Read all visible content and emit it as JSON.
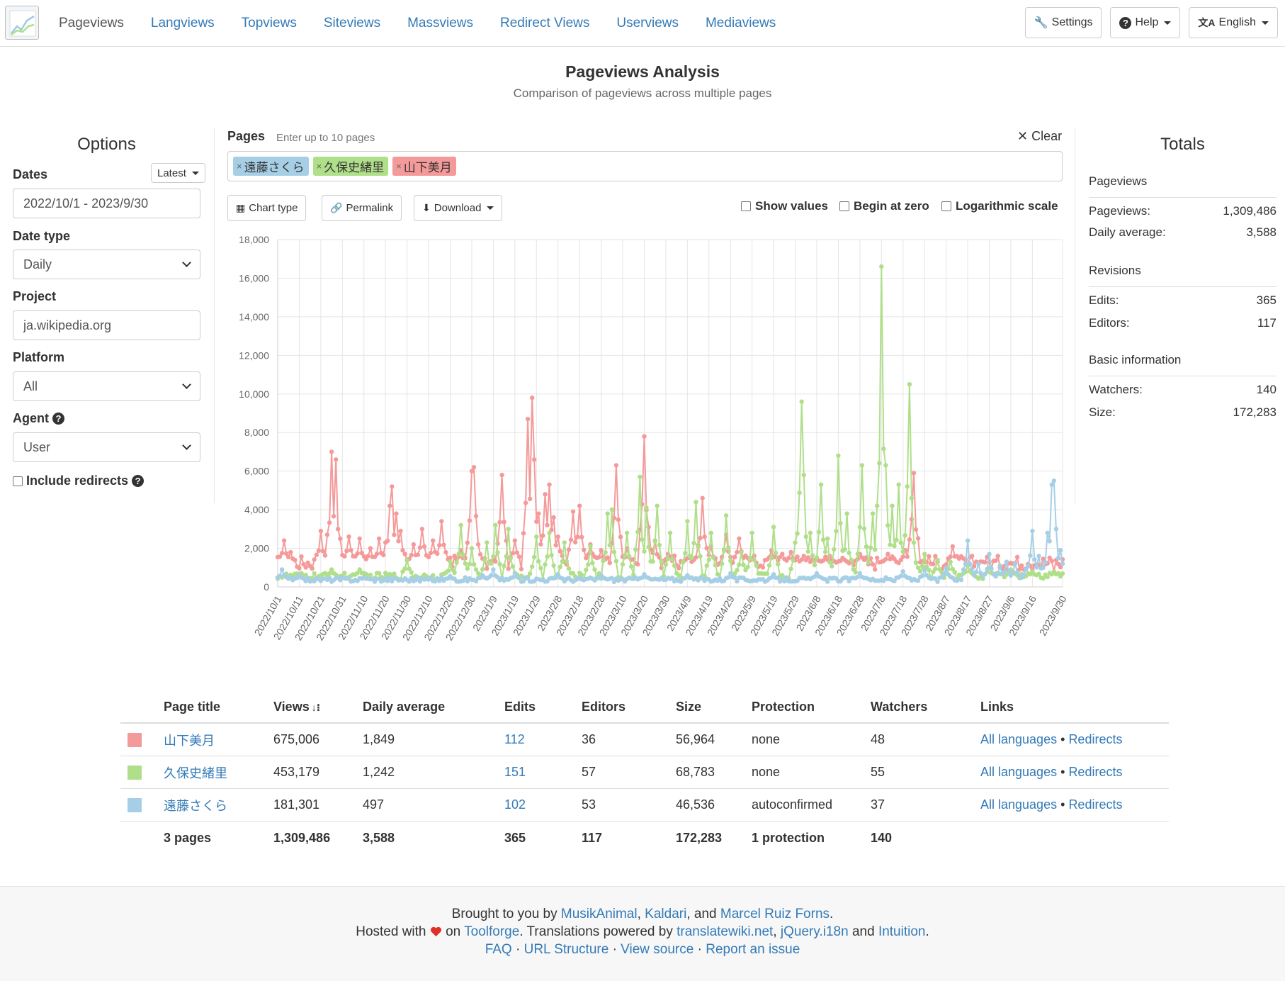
{
  "nav": {
    "items": [
      "Pageviews",
      "Langviews",
      "Topviews",
      "Siteviews",
      "Massviews",
      "Redirect Views",
      "Userviews",
      "Mediaviews"
    ],
    "settings": "Settings",
    "help": "Help",
    "language": "English"
  },
  "header": {
    "title": "Pageviews Analysis",
    "subtitle": "Comparison of pageviews across multiple pages"
  },
  "options": {
    "heading": "Options",
    "dates_label": "Dates",
    "latest_label": "Latest",
    "date_range": "2022/10/1 - 2023/9/30",
    "date_type_label": "Date type",
    "date_type_value": "Daily",
    "project_label": "Project",
    "project_value": "ja.wikipedia.org",
    "platform_label": "Platform",
    "platform_value": "All",
    "agent_label": "Agent",
    "agent_value": "User",
    "include_redirects_label": "Include redirects"
  },
  "pages": {
    "label": "Pages",
    "hint": "Enter up to 10 pages",
    "clear": "Clear",
    "tags": [
      {
        "label": "遠藤さくら",
        "color": "#a6cfe6"
      },
      {
        "label": "久保史緒里",
        "color": "#b0df8a"
      },
      {
        "label": "山下美月",
        "color": "#f59a9a"
      }
    ]
  },
  "toolbar": {
    "chart_type": "Chart type",
    "permalink": "Permalink",
    "download": "Download",
    "show_values": "Show values",
    "begin_at_zero": "Begin at zero",
    "log_scale": "Logarithmic scale"
  },
  "chart_data": {
    "type": "line",
    "y_ticks": [
      "0",
      "2,000",
      "4,000",
      "6,000",
      "8,000",
      "10,000",
      "12,000",
      "14,000",
      "16,000",
      "18,000"
    ],
    "ylim": [
      0,
      18000
    ],
    "x_tick_labels": [
      "2022/10/1",
      "2022/10/11",
      "2022/10/21",
      "2022/10/31",
      "2022/11/10",
      "2022/11/20",
      "2022/11/30",
      "2022/12/10",
      "2022/12/20",
      "2022/12/30",
      "2023/1/9",
      "2023/1/19",
      "2023/1/29",
      "2023/2/8",
      "2023/2/18",
      "2023/2/28",
      "2023/3/10",
      "2023/3/20",
      "2023/3/30",
      "2023/4/9",
      "2023/4/19",
      "2023/4/29",
      "2023/5/9",
      "2023/5/19",
      "2023/5/29",
      "2023/6/8",
      "2023/6/18",
      "2023/6/28",
      "2023/7/8",
      "2023/7/18",
      "2023/7/28",
      "2023/8/7",
      "2023/8/17",
      "2023/8/27",
      "2023/9/6",
      "2023/9/16",
      "2023/9/30"
    ],
    "num_days": 365,
    "grid": true,
    "series": [
      {
        "name": "山下美月",
        "color": "#f59a9a",
        "base": 1250,
        "peaks": [
          [
            3,
            2400
          ],
          [
            6,
            1800
          ],
          [
            20,
            2900
          ],
          [
            25,
            7000
          ],
          [
            27,
            6600
          ],
          [
            28,
            3000
          ],
          [
            33,
            2600
          ],
          [
            38,
            2500
          ],
          [
            43,
            2000
          ],
          [
            46,
            1700
          ],
          [
            47,
            2500
          ],
          [
            50,
            2300
          ],
          [
            52,
            4200
          ],
          [
            53,
            5200
          ],
          [
            55,
            3800
          ],
          [
            57,
            2900
          ],
          [
            58,
            1900
          ],
          [
            63,
            2200
          ],
          [
            67,
            3000
          ],
          [
            72,
            2400
          ],
          [
            76,
            3400
          ],
          [
            85,
            1900
          ],
          [
            90,
            6000
          ],
          [
            91,
            6200
          ],
          [
            93,
            2200
          ],
          [
            100,
            1400
          ],
          [
            104,
            5800
          ],
          [
            110,
            2400
          ],
          [
            116,
            8700
          ],
          [
            118,
            9800
          ],
          [
            119,
            6600
          ],
          [
            121,
            3800
          ],
          [
            124,
            4800
          ],
          [
            126,
            5300
          ],
          [
            128,
            3600
          ],
          [
            130,
            2600
          ],
          [
            137,
            3900
          ],
          [
            140,
            4200
          ],
          [
            145,
            2200
          ],
          [
            150,
            1900
          ],
          [
            157,
            6300
          ],
          [
            162,
            2000
          ],
          [
            170,
            7800
          ],
          [
            172,
            3100
          ],
          [
            175,
            2400
          ],
          [
            181,
            1700
          ],
          [
            190,
            1500
          ],
          [
            195,
            2000
          ],
          [
            197,
            4600
          ],
          [
            201,
            2100
          ],
          [
            208,
            2700
          ],
          [
            214,
            2500
          ],
          [
            218,
            1500
          ],
          [
            229,
            1900
          ],
          [
            234,
            1700
          ],
          [
            238,
            1800
          ],
          [
            244,
            1600
          ],
          [
            250,
            1500
          ],
          [
            256,
            1600
          ],
          [
            262,
            1500
          ],
          [
            270,
            1700
          ],
          [
            280,
            1300
          ],
          [
            283,
            1700
          ],
          [
            291,
            1900
          ],
          [
            295,
            5900
          ],
          [
            300,
            1300
          ],
          [
            313,
            2100
          ],
          [
            320,
            1100
          ],
          [
            327,
            1300
          ],
          [
            341,
            1200
          ],
          [
            350,
            900
          ],
          [
            360,
            800
          ]
        ]
      },
      {
        "name": "久保史緒里",
        "color": "#b0df8a",
        "base": 560,
        "peaks": [
          [
            25,
            900
          ],
          [
            38,
            900
          ],
          [
            60,
            1400
          ],
          [
            80,
            1300
          ],
          [
            85,
            3200
          ],
          [
            90,
            2000
          ],
          [
            97,
            2300
          ],
          [
            101,
            3200
          ],
          [
            107,
            3000
          ],
          [
            120,
            2600
          ],
          [
            126,
            2800
          ],
          [
            133,
            2300
          ],
          [
            145,
            2100
          ],
          [
            153,
            3800
          ],
          [
            155,
            4000
          ],
          [
            162,
            2800
          ],
          [
            168,
            5700
          ],
          [
            171,
            4100
          ],
          [
            176,
            4200
          ],
          [
            182,
            2800
          ],
          [
            190,
            3400
          ],
          [
            194,
            4400
          ],
          [
            201,
            2800
          ],
          [
            208,
            3700
          ],
          [
            215,
            1800
          ],
          [
            220,
            2800
          ],
          [
            230,
            3100
          ],
          [
            240,
            2300
          ],
          [
            243,
            9600
          ],
          [
            244,
            5800
          ],
          [
            247,
            2800
          ],
          [
            252,
            5300
          ],
          [
            255,
            2500
          ],
          [
            260,
            6800
          ],
          [
            264,
            3800
          ],
          [
            266,
            1400
          ],
          [
            271,
            6300
          ],
          [
            276,
            3800
          ],
          [
            280,
            16600
          ],
          [
            282,
            6300
          ],
          [
            285,
            4200
          ],
          [
            288,
            5300
          ],
          [
            293,
            10500
          ],
          [
            295,
            2300
          ],
          [
            300,
            1700
          ],
          [
            306,
            1400
          ],
          [
            312,
            1300
          ],
          [
            320,
            1100
          ],
          [
            330,
            1000
          ],
          [
            340,
            900
          ],
          [
            350,
            800
          ],
          [
            360,
            800
          ]
        ]
      },
      {
        "name": "遠藤さくら",
        "color": "#a6cfe6",
        "base": 380,
        "peaks": [
          [
            2,
            900
          ],
          [
            10,
            600
          ],
          [
            40,
            500
          ],
          [
            80,
            550
          ],
          [
            95,
            600
          ],
          [
            100,
            900
          ],
          [
            110,
            700
          ],
          [
            130,
            650
          ],
          [
            150,
            600
          ],
          [
            170,
            650
          ],
          [
            190,
            600
          ],
          [
            210,
            700
          ],
          [
            230,
            650
          ],
          [
            250,
            700
          ],
          [
            270,
            700
          ],
          [
            290,
            800
          ],
          [
            300,
            900
          ],
          [
            310,
            1000
          ],
          [
            320,
            2400
          ],
          [
            325,
            1200
          ],
          [
            330,
            1700
          ],
          [
            335,
            1100
          ],
          [
            338,
            1300
          ],
          [
            342,
            1200
          ],
          [
            347,
            900
          ],
          [
            350,
            2900
          ],
          [
            353,
            1600
          ],
          [
            357,
            2800
          ],
          [
            359,
            5300
          ],
          [
            360,
            5500
          ],
          [
            361,
            3000
          ],
          [
            363,
            1900
          ],
          [
            364,
            1200
          ]
        ]
      }
    ]
  },
  "totals": {
    "heading": "Totals",
    "pageviews_section": "Pageviews",
    "pageviews_label": "Pageviews:",
    "pageviews_value": "1,309,486",
    "daily_avg_label": "Daily average:",
    "daily_avg_value": "3,588",
    "revisions_section": "Revisions",
    "edits_label": "Edits:",
    "edits_value": "365",
    "editors_label": "Editors:",
    "editors_value": "117",
    "basic_section": "Basic information",
    "watchers_label": "Watchers:",
    "watchers_value": "140",
    "size_label": "Size:",
    "size_value": "172,283"
  },
  "table": {
    "headers": {
      "title": "Page title",
      "views": "Views",
      "daily": "Daily average",
      "edits": "Edits",
      "editors": "Editors",
      "size": "Size",
      "protection": "Protection",
      "watchers": "Watchers",
      "links": "Links"
    },
    "rows": [
      {
        "color": "#f59a9a",
        "title": "山下美月",
        "views": "675,006",
        "daily": "1,849",
        "edits": "112",
        "editors": "36",
        "size": "56,964",
        "protection": "none",
        "watchers": "48",
        "link1": "All languages",
        "sep": "•",
        "link2": "Redirects"
      },
      {
        "color": "#b0df8a",
        "title": "久保史緒里",
        "views": "453,179",
        "daily": "1,242",
        "edits": "151",
        "editors": "57",
        "size": "68,783",
        "protection": "none",
        "watchers": "55",
        "link1": "All languages",
        "sep": "•",
        "link2": "Redirects"
      },
      {
        "color": "#a6cfe6",
        "title": "遠藤さくら",
        "views": "181,301",
        "daily": "497",
        "edits": "102",
        "editors": "53",
        "size": "46,536",
        "protection": "autoconfirmed",
        "watchers": "37",
        "link1": "All languages",
        "sep": "•",
        "link2": "Redirects"
      }
    ],
    "total": {
      "title": "3 pages",
      "views": "1,309,486",
      "daily": "3,588",
      "edits": "365",
      "editors": "117",
      "size": "172,283",
      "protection": "1 protection",
      "watchers": "140"
    }
  },
  "footer": {
    "brought": "Brought to you by",
    "a1": "MusikAnimal",
    "comma": ",",
    "a2": "Kaldari",
    "and": ", and",
    "a3": "Marcel Ruiz Forns",
    "period": ".",
    "hosted": "Hosted with",
    "on": "on",
    "toolforge": "Toolforge",
    "translations": ". Translations powered by",
    "twn": "translatewiki.net",
    "c2": ",",
    "i18n": "jQuery.i18n",
    "and2": "and",
    "intuition": "Intuition",
    "end": ".",
    "faq": "FAQ",
    "dot": "·",
    "url": "URL Structure",
    "source": "View source",
    "report": "Report an issue"
  }
}
